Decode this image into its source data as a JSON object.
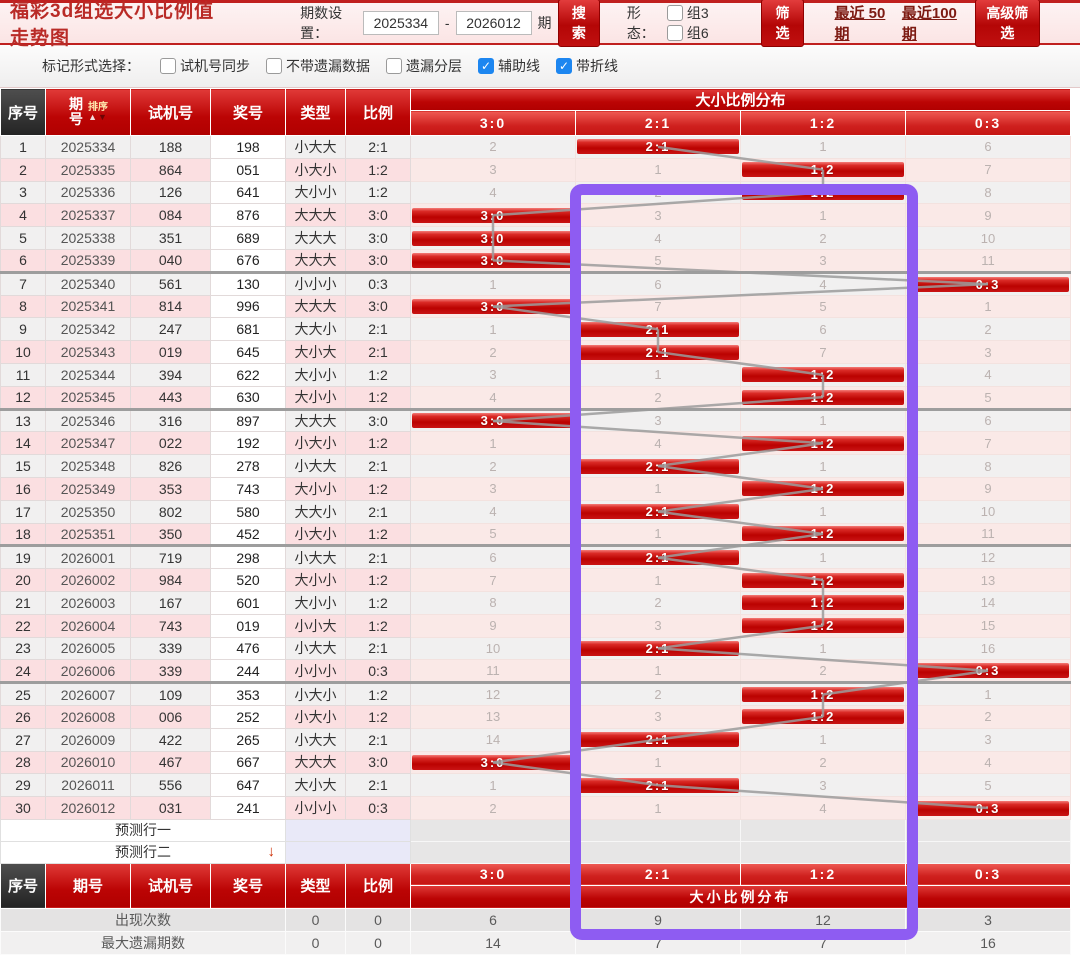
{
  "header": {
    "title": "福彩3d组选大小比例值走势图",
    "period_label": "期数设置：",
    "period_from": "2025334",
    "period_dash": "-",
    "period_to": "2026012",
    "period_suffix": "期",
    "search_label": "搜索",
    "shape_label": "形态：",
    "shape_options": [
      {
        "label": "组3",
        "checked": false
      },
      {
        "label": "组6",
        "checked": false
      }
    ],
    "filter_label": "筛选",
    "recent_links": [
      "最近 50期",
      "最近100期"
    ],
    "advanced_label": "高级筛选"
  },
  "toolbar": {
    "label": "标记形式选择：",
    "options": [
      {
        "label": "试机号同步",
        "checked": false
      },
      {
        "label": "不带遗漏数据",
        "checked": false
      },
      {
        "label": "遗漏分层",
        "checked": false
      },
      {
        "label": "辅助线",
        "checked": true
      },
      {
        "label": "带折线",
        "checked": true
      }
    ]
  },
  "table": {
    "columns": [
      "序号",
      "期号",
      "试机号",
      "奖号",
      "类型",
      "比例"
    ],
    "sort_label": "排序",
    "group_title": "大小比例分布",
    "ratio_columns": [
      "3:0",
      "2:1",
      "1:2",
      "0:3"
    ],
    "rows": [
      {
        "seq": "1",
        "period": "2025334",
        "test": "188",
        "prize": "198",
        "type": "小大大",
        "ratio": "2:1",
        "cells": [
          "2",
          "2:1",
          "1",
          "6"
        ],
        "hit": 1
      },
      {
        "seq": "2",
        "period": "2025335",
        "test": "864",
        "prize": "051",
        "type": "小大小",
        "ratio": "1:2",
        "cells": [
          "3",
          "1",
          "1:2",
          "7"
        ],
        "hit": 2
      },
      {
        "seq": "3",
        "period": "2025336",
        "test": "126",
        "prize": "641",
        "type": "大小小",
        "ratio": "1:2",
        "cells": [
          "4",
          "2",
          "1:2",
          "8"
        ],
        "hit": 2
      },
      {
        "seq": "4",
        "period": "2025337",
        "test": "084",
        "prize": "876",
        "type": "大大大",
        "ratio": "3:0",
        "cells": [
          "3:0",
          "3",
          "1",
          "9"
        ],
        "hit": 0
      },
      {
        "seq": "5",
        "period": "2025338",
        "test": "351",
        "prize": "689",
        "type": "大大大",
        "ratio": "3:0",
        "cells": [
          "3:0",
          "4",
          "2",
          "10"
        ],
        "hit": 0
      },
      {
        "seq": "6",
        "period": "2025339",
        "test": "040",
        "prize": "676",
        "type": "大大大",
        "ratio": "3:0",
        "cells": [
          "3:0",
          "5",
          "3",
          "11"
        ],
        "hit": 0
      },
      {
        "seq": "7",
        "period": "2025340",
        "test": "561",
        "prize": "130",
        "type": "小小小",
        "ratio": "0:3",
        "cells": [
          "1",
          "6",
          "4",
          "0:3"
        ],
        "hit": 3
      },
      {
        "seq": "8",
        "period": "2025341",
        "test": "814",
        "prize": "996",
        "type": "大大大",
        "ratio": "3:0",
        "cells": [
          "3:0",
          "7",
          "5",
          "1"
        ],
        "hit": 0
      },
      {
        "seq": "9",
        "period": "2025342",
        "test": "247",
        "prize": "681",
        "type": "大大小",
        "ratio": "2:1",
        "cells": [
          "1",
          "2:1",
          "6",
          "2"
        ],
        "hit": 1
      },
      {
        "seq": "10",
        "period": "2025343",
        "test": "019",
        "prize": "645",
        "type": "大小大",
        "ratio": "2:1",
        "cells": [
          "2",
          "2:1",
          "7",
          "3"
        ],
        "hit": 1
      },
      {
        "seq": "11",
        "period": "2025344",
        "test": "394",
        "prize": "622",
        "type": "大小小",
        "ratio": "1:2",
        "cells": [
          "3",
          "1",
          "1:2",
          "4"
        ],
        "hit": 2
      },
      {
        "seq": "12",
        "period": "2025345",
        "test": "443",
        "prize": "630",
        "type": "大小小",
        "ratio": "1:2",
        "cells": [
          "4",
          "2",
          "1:2",
          "5"
        ],
        "hit": 2
      },
      {
        "seq": "13",
        "period": "2025346",
        "test": "316",
        "prize": "897",
        "type": "大大大",
        "ratio": "3:0",
        "cells": [
          "3:0",
          "3",
          "1",
          "6"
        ],
        "hit": 0
      },
      {
        "seq": "14",
        "period": "2025347",
        "test": "022",
        "prize": "192",
        "type": "小大小",
        "ratio": "1:2",
        "cells": [
          "1",
          "4",
          "1:2",
          "7"
        ],
        "hit": 2
      },
      {
        "seq": "15",
        "period": "2025348",
        "test": "826",
        "prize": "278",
        "type": "小大大",
        "ratio": "2:1",
        "cells": [
          "2",
          "2:1",
          "1",
          "8"
        ],
        "hit": 1
      },
      {
        "seq": "16",
        "period": "2025349",
        "test": "353",
        "prize": "743",
        "type": "大小小",
        "ratio": "1:2",
        "cells": [
          "3",
          "1",
          "1:2",
          "9"
        ],
        "hit": 2
      },
      {
        "seq": "17",
        "period": "2025350",
        "test": "802",
        "prize": "580",
        "type": "大大小",
        "ratio": "2:1",
        "cells": [
          "4",
          "2:1",
          "1",
          "10"
        ],
        "hit": 1
      },
      {
        "seq": "18",
        "period": "2025351",
        "test": "350",
        "prize": "452",
        "type": "小大小",
        "ratio": "1:2",
        "cells": [
          "5",
          "1",
          "1:2",
          "11"
        ],
        "hit": 2
      },
      {
        "seq": "19",
        "period": "2026001",
        "test": "719",
        "prize": "298",
        "type": "小大大",
        "ratio": "2:1",
        "cells": [
          "6",
          "2:1",
          "1",
          "12"
        ],
        "hit": 1
      },
      {
        "seq": "20",
        "period": "2026002",
        "test": "984",
        "prize": "520",
        "type": "大小小",
        "ratio": "1:2",
        "cells": [
          "7",
          "1",
          "1:2",
          "13"
        ],
        "hit": 2
      },
      {
        "seq": "21",
        "period": "2026003",
        "test": "167",
        "prize": "601",
        "type": "大小小",
        "ratio": "1:2",
        "cells": [
          "8",
          "2",
          "1:2",
          "14"
        ],
        "hit": 2
      },
      {
        "seq": "22",
        "period": "2026004",
        "test": "743",
        "prize": "019",
        "type": "小小大",
        "ratio": "1:2",
        "cells": [
          "9",
          "3",
          "1:2",
          "15"
        ],
        "hit": 2
      },
      {
        "seq": "23",
        "period": "2026005",
        "test": "339",
        "prize": "476",
        "type": "小大大",
        "ratio": "2:1",
        "cells": [
          "10",
          "2:1",
          "1",
          "16"
        ],
        "hit": 1
      },
      {
        "seq": "24",
        "period": "2026006",
        "test": "339",
        "prize": "244",
        "type": "小小小",
        "ratio": "0:3",
        "cells": [
          "11",
          "1",
          "2",
          "0:3"
        ],
        "hit": 3
      },
      {
        "seq": "25",
        "period": "2026007",
        "test": "109",
        "prize": "353",
        "type": "小大小",
        "ratio": "1:2",
        "cells": [
          "12",
          "2",
          "1:2",
          "1"
        ],
        "hit": 2
      },
      {
        "seq": "26",
        "period": "2026008",
        "test": "006",
        "prize": "252",
        "type": "小大小",
        "ratio": "1:2",
        "cells": [
          "13",
          "3",
          "1:2",
          "2"
        ],
        "hit": 2
      },
      {
        "seq": "27",
        "period": "2026009",
        "test": "422",
        "prize": "265",
        "type": "小大大",
        "ratio": "2:1",
        "cells": [
          "14",
          "2:1",
          "1",
          "3"
        ],
        "hit": 1
      },
      {
        "seq": "28",
        "period": "2026010",
        "test": "467",
        "prize": "667",
        "type": "大大大",
        "ratio": "3:0",
        "cells": [
          "3:0",
          "1",
          "2",
          "4"
        ],
        "hit": 0
      },
      {
        "seq": "29",
        "period": "2026011",
        "test": "556",
        "prize": "647",
        "type": "大小大",
        "ratio": "2:1",
        "cells": [
          "1",
          "2:1",
          "3",
          "5"
        ],
        "hit": 1
      },
      {
        "seq": "30",
        "period": "2026012",
        "test": "031",
        "prize": "241",
        "type": "小小小",
        "ratio": "0:3",
        "cells": [
          "2",
          "1",
          "4",
          "0:3"
        ],
        "hit": 3
      }
    ]
  },
  "footer": {
    "prediction_rows": [
      "预测行一",
      "预测行二"
    ],
    "prediction_arrow": "↓",
    "group_title": "大小比例分布",
    "stats": [
      {
        "label": "出现次数",
        "type_val": "0",
        "ratio_val": "0",
        "values": [
          "6",
          "9",
          "12",
          "3"
        ]
      },
      {
        "label": "最大遗漏期数",
        "type_val": "0",
        "ratio_val": "0",
        "values": [
          "14",
          "7",
          "7",
          "16"
        ]
      }
    ]
  },
  "colors": {
    "accent_red": "#bb0404",
    "highlight_purple": "#8e5cf2",
    "checkbox_blue": "#1d86f0",
    "trend_line_gray": "#9b9b9b"
  }
}
